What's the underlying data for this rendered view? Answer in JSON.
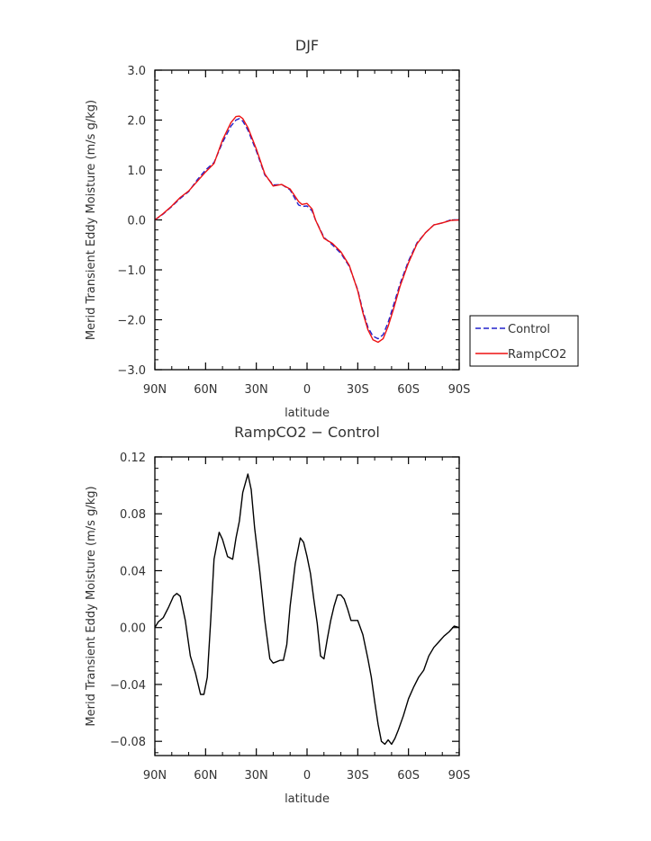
{
  "chart_data": [
    {
      "type": "line",
      "title": "DJF",
      "xlabel": "latitude",
      "ylabel": "Merid Transient Eddy Moisture (m/s g/kg)",
      "xlim": [
        90,
        -90
      ],
      "ylim": [
        -3.0,
        3.0
      ],
      "xticks": [
        90,
        60,
        30,
        0,
        -30,
        -60,
        -90
      ],
      "xtick_labels": [
        "90N",
        "60N",
        "30N",
        "0",
        "30S",
        "60S",
        "90S"
      ],
      "yticks": [
        -3,
        -2,
        -1,
        0,
        1,
        2,
        3
      ],
      "ytick_labels": [
        "−3.0",
        "−2.0",
        "−1.0",
        "0.0",
        "1.0",
        "2.0",
        "3.0"
      ],
      "legend": "right",
      "series": [
        {
          "name": "Control",
          "color": "#2222cc",
          "dash": "dashed",
          "x": [
            90,
            85,
            80,
            75,
            70,
            65,
            60,
            55,
            50,
            45,
            42,
            40,
            38,
            35,
            30,
            25,
            20,
            15,
            10,
            5,
            3,
            0,
            -3,
            -5,
            -10,
            -15,
            -20,
            -25,
            -30,
            -33,
            -36,
            -39,
            -42,
            -45,
            -48,
            -51,
            -55,
            -60,
            -65,
            -70,
            -75,
            -80,
            -85,
            -90
          ],
          "y": [
            0.0,
            0.12,
            0.27,
            0.43,
            0.57,
            0.8,
            1.0,
            1.15,
            1.55,
            1.88,
            2.0,
            2.03,
            1.98,
            1.8,
            1.38,
            0.9,
            0.7,
            0.71,
            0.6,
            0.3,
            0.27,
            0.28,
            0.18,
            0.0,
            -0.35,
            -0.5,
            -0.67,
            -0.93,
            -1.4,
            -1.82,
            -2.15,
            -2.33,
            -2.38,
            -2.3,
            -2.05,
            -1.72,
            -1.28,
            -0.82,
            -0.46,
            -0.26,
            -0.1,
            -0.06,
            0.0,
            0.0
          ]
        },
        {
          "name": "RampCO2",
          "color": "#ee1111",
          "dash": "solid",
          "x": [
            90,
            85,
            80,
            75,
            70,
            65,
            60,
            55,
            50,
            45,
            42,
            40,
            38,
            35,
            30,
            25,
            20,
            15,
            10,
            5,
            3,
            0,
            -3,
            -5,
            -10,
            -15,
            -20,
            -25,
            -30,
            -33,
            -36,
            -39,
            -42,
            -45,
            -48,
            -51,
            -55,
            -60,
            -65,
            -70,
            -75,
            -80,
            -85,
            -90
          ],
          "y": [
            0.0,
            0.13,
            0.28,
            0.45,
            0.58,
            0.77,
            0.96,
            1.13,
            1.6,
            1.95,
            2.07,
            2.08,
            2.03,
            1.85,
            1.42,
            0.92,
            0.68,
            0.71,
            0.62,
            0.37,
            0.31,
            0.33,
            0.22,
            0.0,
            -0.37,
            -0.47,
            -0.64,
            -0.91,
            -1.42,
            -1.86,
            -2.2,
            -2.4,
            -2.45,
            -2.38,
            -2.13,
            -1.8,
            -1.33,
            -0.86,
            -0.48,
            -0.26,
            -0.1,
            -0.06,
            -0.01,
            0.0
          ]
        }
      ]
    },
    {
      "type": "line",
      "title": "RampCO2 − Control",
      "xlabel": "latitude",
      "ylabel": "Merid Transient Eddy Moisture (m/s g/kg)",
      "xlim": [
        90,
        -90
      ],
      "ylim": [
        -0.09,
        0.12
      ],
      "xticks": [
        90,
        60,
        30,
        0,
        -30,
        -60,
        -90
      ],
      "xtick_labels": [
        "90N",
        "60N",
        "30N",
        "0",
        "30S",
        "60S",
        "90S"
      ],
      "yticks": [
        -0.08,
        -0.04,
        0.0,
        0.04,
        0.08,
        0.12
      ],
      "ytick_labels": [
        "−0.08",
        "−0.04",
        "0.00",
        "0.04",
        "0.08",
        "0.12"
      ],
      "series": [
        {
          "color": "#000000",
          "dash": "solid",
          "x": [
            90,
            88,
            85,
            82,
            79,
            77,
            75,
            72,
            69,
            66,
            63,
            61,
            59,
            57,
            55,
            52,
            50,
            47,
            44,
            42,
            40,
            38,
            35,
            33,
            31,
            28,
            25,
            22,
            20,
            18,
            16,
            14,
            12,
            10,
            7,
            4,
            2,
            0,
            -2,
            -4,
            -6,
            -8,
            -10,
            -12,
            -14,
            -16,
            -18,
            -20,
            -22,
            -24,
            -26,
            -28,
            -30,
            -33,
            -36,
            -38,
            -40,
            -42,
            -44,
            -46,
            -48,
            -50,
            -52,
            -54,
            -57,
            -60,
            -63,
            -66,
            -69,
            -72,
            -75,
            -78,
            -81,
            -84,
            -87,
            -90
          ],
          "y": [
            0.0,
            0.004,
            0.007,
            0.014,
            0.022,
            0.024,
            0.022,
            0.005,
            -0.02,
            -0.032,
            -0.047,
            -0.047,
            -0.035,
            0.005,
            0.048,
            0.067,
            0.062,
            0.05,
            0.048,
            0.063,
            0.075,
            0.095,
            0.108,
            0.097,
            0.07,
            0.04,
            0.005,
            -0.022,
            -0.025,
            -0.024,
            -0.023,
            -0.023,
            -0.012,
            0.015,
            0.045,
            0.063,
            0.06,
            0.05,
            0.038,
            0.02,
            0.003,
            -0.02,
            -0.022,
            -0.008,
            0.005,
            0.015,
            0.023,
            0.023,
            0.02,
            0.013,
            0.005,
            0.005,
            0.005,
            -0.005,
            -0.022,
            -0.035,
            -0.052,
            -0.068,
            -0.08,
            -0.082,
            -0.079,
            -0.082,
            -0.078,
            -0.072,
            -0.062,
            -0.05,
            -0.042,
            -0.035,
            -0.03,
            -0.02,
            -0.014,
            -0.01,
            -0.006,
            -0.003,
            0.001,
            0.0
          ]
        }
      ]
    }
  ]
}
